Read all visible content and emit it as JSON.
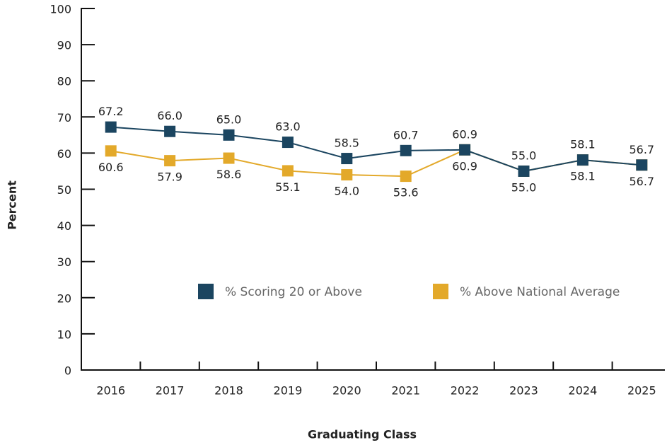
{
  "chart_data": {
    "type": "line",
    "xlabel": "Graduating Class",
    "ylabel": "Percent",
    "categories": [
      "2016",
      "2017",
      "2018",
      "2019",
      "2020",
      "2021",
      "2022",
      "2023",
      "2024",
      "2025"
    ],
    "series": [
      {
        "name": "% Scoring 20 or Above",
        "color": "#1b4560",
        "values": [
          67.2,
          66.0,
          65.0,
          63.0,
          58.5,
          60.7,
          60.9,
          55.0,
          58.1,
          56.7
        ],
        "value_labels": [
          "67.2",
          "66.0",
          "65.0",
          "63.0",
          "58.5",
          "60.7",
          "60.9",
          "55.0",
          "58.1",
          "56.7"
        ]
      },
      {
        "name": "% Above National Average",
        "color": "#e3a92a",
        "values": [
          60.6,
          57.9,
          58.6,
          55.1,
          54.0,
          53.6,
          60.9,
          55.0,
          58.1,
          56.7
        ],
        "value_labels": [
          "60.6",
          "57.9",
          "58.6",
          "55.1",
          "54.0",
          "53.6",
          "60.9",
          "55.0",
          "58.1",
          "56.7"
        ]
      }
    ],
    "ylim": [
      0,
      100
    ],
    "yticks": [
      0,
      10,
      20,
      30,
      40,
      50,
      60,
      70,
      80,
      90,
      100
    ],
    "legend": "center"
  }
}
